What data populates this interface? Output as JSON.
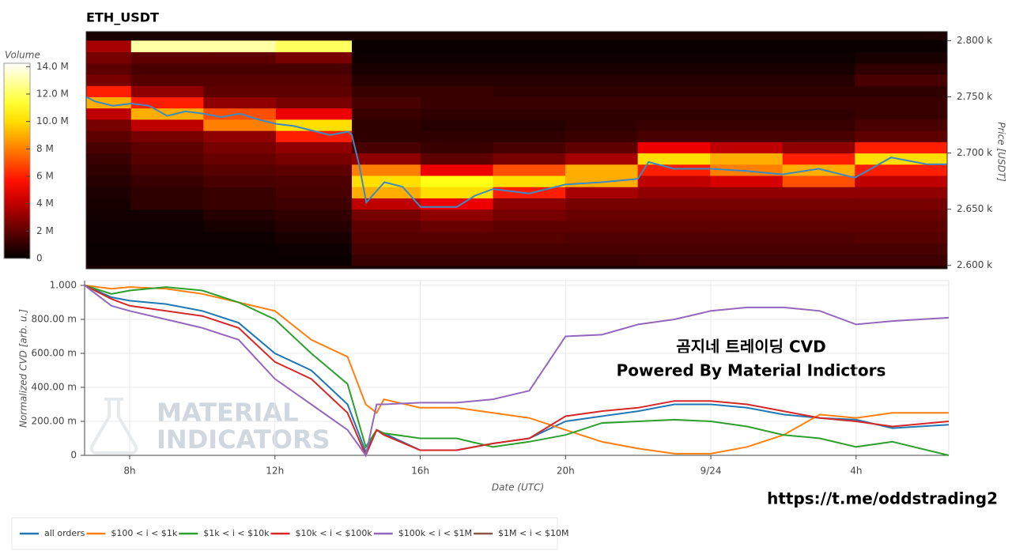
{
  "chart_data": [
    {
      "type": "heatmap",
      "title": "ETH_USDT",
      "ylabel": "Price [USDT]",
      "colormap": "hot",
      "xlim": [
        6.76,
        30.55
      ],
      "ylim": [
        2597,
        2808
      ],
      "yticks": [
        {
          "value": 2600,
          "label": "2.600 k"
        },
        {
          "value": 2650,
          "label": "2.650 k"
        },
        {
          "value": 2700,
          "label": "2.700 k"
        },
        {
          "value": 2750,
          "label": "2.750 k"
        },
        {
          "value": 2800,
          "label": "2.800 k"
        }
      ],
      "x_edges": [
        6.76,
        8,
        10,
        12,
        14.1,
        16,
        18,
        20,
        22,
        24,
        26,
        28,
        30.55
      ],
      "y_edges": [
        2600,
        2610,
        2620,
        2630,
        2640,
        2650,
        2660,
        2670,
        2680,
        2690,
        2700,
        2710,
        2720,
        2730,
        2740,
        2750,
        2760,
        2770,
        2780,
        2790,
        2800
      ],
      "z": [
        [
          0.2,
          0.2,
          0.2,
          0.2,
          1.2,
          1.2,
          1.2,
          1.2,
          1.3,
          1.3,
          1.3,
          1.3
        ],
        [
          0.2,
          0.2,
          0.2,
          0.3,
          1.5,
          1.5,
          1.5,
          1.5,
          1.5,
          1.5,
          1.5,
          1.5
        ],
        [
          0.3,
          0.3,
          0.3,
          0.5,
          1.8,
          1.8,
          1.8,
          1.7,
          1.7,
          1.7,
          1.7,
          1.8
        ],
        [
          0.3,
          0.3,
          0.5,
          0.8,
          2.0,
          2.2,
          2.0,
          2.0,
          2.0,
          2.0,
          2.0,
          2.0
        ],
        [
          0.4,
          0.4,
          0.8,
          1.0,
          2.5,
          3.0,
          2.5,
          2.2,
          2.2,
          2.2,
          2.2,
          2.2
        ],
        [
          0.5,
          1.0,
          1.2,
          1.3,
          4.0,
          5.0,
          3.0,
          2.5,
          2.5,
          2.5,
          2.5,
          2.5
        ],
        [
          0.6,
          1.0,
          1.2,
          1.5,
          9.0,
          10.0,
          6.0,
          3.5,
          3.0,
          3.0,
          3.0,
          3.0
        ],
        [
          0.8,
          1.2,
          1.5,
          1.6,
          10.0,
          11.0,
          10.0,
          9.0,
          4.0,
          4.5,
          7.0,
          4.0
        ],
        [
          1.0,
          1.5,
          1.8,
          2.0,
          8.0,
          5.0,
          7.0,
          9.0,
          6.0,
          8.0,
          9.0,
          6.0
        ],
        [
          1.2,
          1.8,
          2.2,
          2.5,
          3.0,
          2.0,
          2.5,
          3.5,
          10.0,
          9.0,
          6.0,
          10.0
        ],
        [
          1.5,
          2.0,
          2.5,
          3.0,
          1.5,
          1.2,
          1.5,
          2.0,
          5.0,
          4.0,
          3.0,
          6.0
        ],
        [
          2.0,
          2.5,
          3.0,
          6.0,
          1.0,
          1.0,
          1.0,
          1.2,
          1.5,
          1.5,
          1.5,
          2.0
        ],
        [
          2.5,
          4.0,
          8.0,
          10.0,
          1.0,
          0.8,
          0.8,
          1.0,
          1.2,
          1.2,
          1.2,
          1.5
        ],
        [
          4.0,
          9.0,
          7.0,
          5.0,
          1.2,
          1.0,
          1.0,
          1.0,
          1.0,
          1.0,
          1.0,
          1.2
        ],
        [
          9.0,
          6.0,
          3.0,
          2.5,
          1.5,
          1.2,
          1.2,
          1.2,
          1.2,
          1.2,
          1.2,
          1.2
        ],
        [
          6.0,
          3.0,
          2.0,
          2.0,
          1.2,
          1.2,
          1.0,
          1.0,
          1.0,
          1.0,
          1.0,
          1.0
        ],
        [
          2.5,
          1.8,
          1.8,
          1.8,
          0.8,
          0.8,
          0.8,
          0.8,
          0.8,
          0.8,
          0.8,
          1.5
        ],
        [
          2.0,
          1.5,
          1.5,
          1.5,
          0.5,
          0.5,
          0.5,
          0.5,
          0.5,
          0.5,
          0.5,
          1.0
        ],
        [
          2.5,
          2.0,
          2.0,
          2.5,
          0.3,
          0.3,
          0.3,
          0.3,
          0.3,
          0.3,
          0.3,
          0.5
        ],
        [
          3.5,
          13.0,
          13.0,
          12.0,
          0.2,
          0.2,
          0.2,
          0.2,
          0.2,
          0.2,
          0.2,
          0.2
        ]
      ],
      "colorbar": {
        "title": "Volume",
        "clim": [
          0,
          14.25
        ],
        "ticks": [
          0,
          {
            "value": 2,
            "label": "2 M"
          },
          {
            "value": 4,
            "label": "4 M"
          },
          {
            "value": 6,
            "label": "6 M"
          },
          {
            "value": 8,
            "label": "8 M"
          },
          {
            "value": 10,
            "label": "10.0 M"
          },
          {
            "value": 12,
            "label": "12.0 M"
          },
          {
            "value": 14,
            "label": "14.0 M"
          }
        ]
      },
      "series": [
        {
          "color": "#3b8ac4",
          "x": [
            6.76,
            7,
            7.5,
            8,
            8.5,
            9,
            9.5,
            10,
            10.5,
            11,
            11.5,
            12,
            12.5,
            13,
            13.5,
            14,
            14.1,
            14.3,
            14.5,
            15,
            15.5,
            16,
            17,
            17.5,
            18,
            19,
            20,
            21,
            22,
            22.3,
            23,
            24,
            25,
            26,
            27,
            28,
            29,
            30,
            30.55
          ],
          "values": [
            2750,
            2746,
            2742,
            2744,
            2742,
            2733,
            2737,
            2735,
            2732,
            2735,
            2730,
            2726,
            2724,
            2720,
            2716,
            2719,
            2716,
            2690,
            2656,
            2674,
            2670,
            2652,
            2652,
            2662,
            2668,
            2664,
            2672,
            2674,
            2677,
            2692,
            2686,
            2686,
            2684,
            2681,
            2686,
            2678,
            2696,
            2690,
            2690
          ]
        }
      ]
    },
    {
      "type": "line",
      "xlabel": "Date (UTC)",
      "ylabel": "Normalized CVD [arb. u.]",
      "grid": true,
      "legend": "bottom",
      "xlim": [
        6.76,
        30.55
      ],
      "ylim": [
        0,
        1.0
      ],
      "xticks": [
        {
          "value": 8,
          "label": "8h"
        },
        {
          "value": 12,
          "label": "12h"
        },
        {
          "value": 16,
          "label": "16h"
        },
        {
          "value": 20,
          "label": "20h"
        },
        {
          "value": 24,
          "label": "9/24"
        },
        {
          "value": 28,
          "label": "4h"
        }
      ],
      "yticks": [
        0,
        {
          "value": 0.2,
          "label": "200.00 m"
        },
        {
          "value": 0.4,
          "label": "400.00 m"
        },
        {
          "value": 0.6,
          "label": "600.00 m"
        },
        {
          "value": 0.8,
          "label": "800.00 m"
        },
        {
          "value": 1,
          "label": "1.000"
        }
      ],
      "annotations": [
        "곰지네 트레이딩 CVD",
        "Powered By Material Indictors"
      ],
      "x": [
        6.76,
        7.5,
        8,
        9,
        10,
        11,
        12,
        13,
        14,
        14.5,
        14.8,
        15,
        16,
        17,
        18,
        19,
        20,
        21,
        22,
        23,
        24,
        25,
        26,
        27,
        28,
        29,
        30.55
      ],
      "series": [
        {
          "name": "all orders",
          "color": "#1f77b4",
          "values": [
            1.0,
            0.93,
            0.91,
            0.89,
            0.85,
            0.78,
            0.6,
            0.5,
            0.3,
            0.02,
            0.15,
            0.13,
            0.03,
            0.03,
            0.07,
            0.1,
            0.2,
            0.23,
            0.26,
            0.3,
            0.3,
            0.28,
            0.24,
            0.22,
            0.21,
            0.16,
            0.18
          ]
        },
        {
          "name": "$100 < i < $1k",
          "color": "#ff7f0e",
          "values": [
            1.0,
            0.98,
            0.99,
            0.98,
            0.95,
            0.9,
            0.85,
            0.68,
            0.58,
            0.3,
            0.25,
            0.33,
            0.28,
            0.28,
            0.25,
            0.22,
            0.15,
            0.08,
            0.04,
            0.01,
            0.01,
            0.05,
            0.12,
            0.24,
            0.22,
            0.25,
            0.25
          ]
        },
        {
          "name": "$1k < i < $10k",
          "color": "#2ca02c",
          "values": [
            1.0,
            0.95,
            0.97,
            0.99,
            0.97,
            0.9,
            0.8,
            0.6,
            0.42,
            0.05,
            0.15,
            0.13,
            0.1,
            0.1,
            0.05,
            0.08,
            0.12,
            0.19,
            0.2,
            0.21,
            0.2,
            0.17,
            0.12,
            0.1,
            0.05,
            0.08,
            0.0
          ]
        },
        {
          "name": "$10k < i < $100k",
          "color": "#d62728",
          "values": [
            1.0,
            0.92,
            0.88,
            0.85,
            0.82,
            0.75,
            0.55,
            0.45,
            0.25,
            0.0,
            0.15,
            0.12,
            0.03,
            0.03,
            0.07,
            0.1,
            0.23,
            0.26,
            0.28,
            0.32,
            0.32,
            0.3,
            0.26,
            0.22,
            0.2,
            0.17,
            0.2
          ]
        },
        {
          "name": "$100k < i < $1M",
          "color": "#9467bd",
          "values": [
            1.0,
            0.88,
            0.85,
            0.8,
            0.75,
            0.68,
            0.45,
            0.3,
            0.15,
            0.0,
            0.3,
            0.3,
            0.31,
            0.31,
            0.33,
            0.38,
            0.7,
            0.71,
            0.77,
            0.8,
            0.85,
            0.87,
            0.87,
            0.85,
            0.77,
            0.79,
            0.81
          ]
        },
        {
          "name": "$1M < i < $10M",
          "color": "#8c564b",
          "values": [
            null,
            null,
            null,
            null,
            null,
            null,
            null,
            null,
            null,
            null,
            null,
            null,
            null,
            null,
            null,
            null,
            null,
            null,
            null,
            null,
            null,
            null,
            null,
            null,
            null,
            null,
            null
          ]
        }
      ]
    }
  ],
  "watermark": [
    "MATERIAL",
    "INDICATORS"
  ],
  "link": "https://t.me/oddstrading2"
}
